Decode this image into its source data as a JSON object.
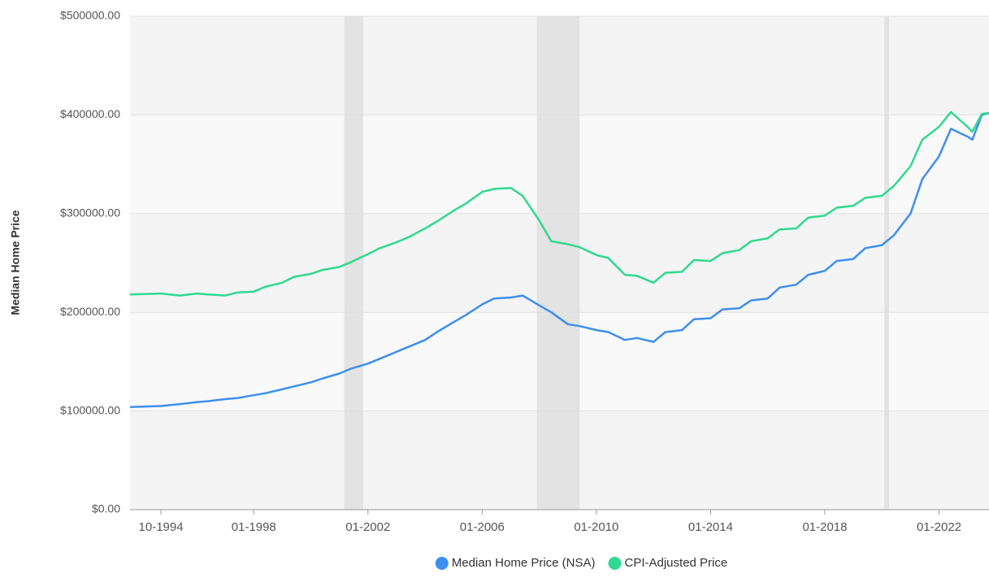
{
  "chart_data": {
    "type": "line",
    "y_label": "Median Home Price",
    "x": [
      "1993-09",
      "1994-10",
      "1995-06",
      "1996-01",
      "1996-06",
      "1997-01",
      "1997-06",
      "1998-01",
      "1998-06",
      "1999-01",
      "1999-06",
      "2000-01",
      "2000-06",
      "2001-01",
      "2001-06",
      "2002-01",
      "2002-06",
      "2003-01",
      "2003-06",
      "2004-01",
      "2004-06",
      "2005-01",
      "2005-06",
      "2006-01",
      "2006-06",
      "2007-01",
      "2007-06",
      "2008-01",
      "2008-06",
      "2009-01",
      "2009-06",
      "2010-01",
      "2010-06",
      "2011-01",
      "2011-06",
      "2012-01",
      "2012-06",
      "2013-01",
      "2013-06",
      "2014-01",
      "2014-06",
      "2015-01",
      "2015-06",
      "2016-01",
      "2016-06",
      "2017-01",
      "2017-06",
      "2018-01",
      "2018-06",
      "2019-01",
      "2019-06",
      "2020-01",
      "2020-06",
      "2021-01",
      "2021-06",
      "2022-01",
      "2022-06",
      "2023-01",
      "2023-03",
      "2023-07",
      "2023-10"
    ],
    "series": [
      {
        "name": "Median Home Price (NSA)",
        "color": "#3d8ff0",
        "values": [
          104000,
          105000,
          107000,
          109000,
          110000,
          112000,
          113000,
          116000,
          118000,
          122000,
          125000,
          129000,
          133000,
          138000,
          143000,
          148000,
          153000,
          160000,
          165000,
          172000,
          180000,
          190000,
          197000,
          208000,
          214000,
          215000,
          217000,
          207000,
          200000,
          188000,
          186000,
          182000,
          180000,
          172000,
          174000,
          170000,
          180000,
          182000,
          193000,
          194000,
          203000,
          204000,
          212000,
          214000,
          225000,
          228000,
          238000,
          242000,
          252000,
          254000,
          265000,
          268000,
          278000,
          300000,
          335000,
          358000,
          386000,
          378000,
          375000,
          400000,
          402000
        ]
      },
      {
        "name": "CPI-Adjusted Price",
        "color": "#2fd98f",
        "values": [
          218000,
          219000,
          217000,
          219000,
          218000,
          217000,
          220000,
          221000,
          226000,
          230000,
          236000,
          239000,
          243000,
          246000,
          251000,
          259000,
          265000,
          271000,
          276000,
          285000,
          292000,
          303000,
          310000,
          322000,
          325000,
          326000,
          318000,
          293000,
          272000,
          269000,
          266000,
          258000,
          255000,
          238000,
          237000,
          230000,
          240000,
          241000,
          253000,
          252000,
          260000,
          263000,
          272000,
          275000,
          284000,
          285000,
          296000,
          298000,
          306000,
          308000,
          316000,
          318000,
          328000,
          348000,
          375000,
          388000,
          403000,
          388000,
          383000,
          401000,
          402000
        ]
      }
    ],
    "recessions": [
      {
        "start": "2001-03",
        "end": "2001-11"
      },
      {
        "start": "2007-12",
        "end": "2009-06"
      },
      {
        "start": "2020-02",
        "end": "2020-04"
      }
    ],
    "xlim": [
      "1993-09",
      "2023-10"
    ],
    "xticks": [
      {
        "value": "1994-10",
        "label": "10-1994"
      },
      {
        "value": "1998-01",
        "label": "01-1998"
      },
      {
        "value": "2002-01",
        "label": "01-2002"
      },
      {
        "value": "2006-01",
        "label": "01-2006"
      },
      {
        "value": "2010-01",
        "label": "01-2010"
      },
      {
        "value": "2014-01",
        "label": "01-2014"
      },
      {
        "value": "2018-01",
        "label": "01-2018"
      },
      {
        "value": "2022-01",
        "label": "01-2022"
      }
    ],
    "ylim": [
      0,
      500000
    ],
    "yticks": [
      {
        "value": 0,
        "label": "$0.00"
      },
      {
        "value": 100000,
        "label": "$100000.00"
      },
      {
        "value": 200000,
        "label": "$200000.00"
      },
      {
        "value": 300000,
        "label": "$300000.00"
      },
      {
        "value": 400000,
        "label": "$400000.00"
      },
      {
        "value": 500000,
        "label": "$500000.00"
      }
    ],
    "grid": true,
    "legend": "bottom"
  }
}
